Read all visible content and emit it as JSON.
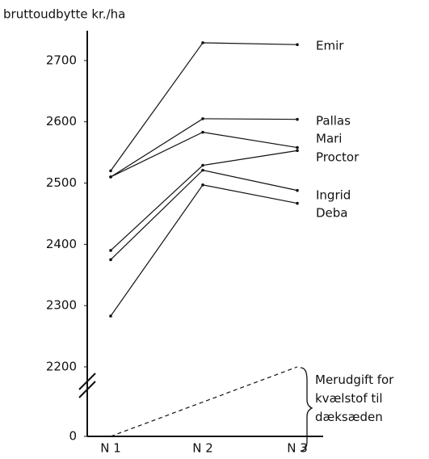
{
  "chart_data": {
    "type": "line",
    "y_label": "bruttoudbytte kr./ha",
    "categories": [
      "N 1",
      "N 2",
      "N 3"
    ],
    "ylim": [
      2200,
      2750
    ],
    "yticks": [
      0,
      2200,
      2300,
      2400,
      2500,
      2600,
      2700
    ],
    "axis_break": true,
    "series": [
      {
        "name": "Emir",
        "color": "#111111",
        "values": [
          2520,
          2729,
          2726
        ]
      },
      {
        "name": "Pallas",
        "color": "#111111",
        "values": [
          2510,
          2605,
          2604
        ]
      },
      {
        "name": "Mari",
        "color": "#111111",
        "values": [
          2510,
          2583,
          2558
        ]
      },
      {
        "name": "Proctor",
        "color": "#111111",
        "values": [
          2390,
          2529,
          2553
        ]
      },
      {
        "name": "Ingrid",
        "color": "#111111",
        "values": [
          2375,
          2521,
          2488
        ]
      },
      {
        "name": "Deba",
        "color": "#111111",
        "values": [
          2283,
          2497,
          2467
        ]
      },
      {
        "name": "Merudgift for kvælstof til dæksæden",
        "color": "#111111",
        "dashed": true,
        "x": [
          "N 1",
          "N 3"
        ],
        "values": [
          0,
          2200
        ]
      }
    ]
  }
}
